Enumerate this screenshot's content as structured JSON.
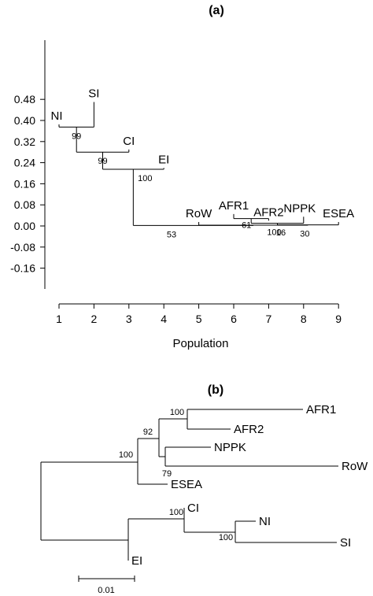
{
  "chart_data": [
    {
      "type": "dendrogram",
      "panel_label": "(a)",
      "xlabel": "Population",
      "x_ticks": [
        "1",
        "2",
        "3",
        "4",
        "5",
        "6",
        "7",
        "8",
        "9"
      ],
      "y_ticks": [
        "0.48",
        "0.40",
        "0.32",
        "0.24",
        "0.16",
        "0.08",
        "0.00",
        "-0.08",
        "-0.16"
      ],
      "ylim": [
        -0.2,
        0.52
      ],
      "leaves": [
        {
          "name": "NI",
          "x": 1,
          "y": 0.385
        },
        {
          "name": "SI",
          "x": 2,
          "y": 0.47
        },
        {
          "name": "CI",
          "x": 3,
          "y": 0.29
        },
        {
          "name": "EI",
          "x": 4,
          "y": 0.22
        },
        {
          "name": "RoW",
          "x": 5,
          "y": 0.015
        },
        {
          "name": "AFR1",
          "x": 6,
          "y": 0.045
        },
        {
          "name": "AFR2",
          "x": 7,
          "y": 0.02
        },
        {
          "name": "NPPK",
          "x": 8,
          "y": 0.035
        },
        {
          "name": "ESEA",
          "x": 9,
          "y": 0.015
        }
      ],
      "merges": [
        {
          "id": "NI_SI",
          "children": [
            "NI",
            "SI"
          ],
          "height": 0.375,
          "support": "99"
        },
        {
          "id": "CI_grp",
          "children": [
            "NI_SI",
            "CI"
          ],
          "height": 0.28,
          "support": "99"
        },
        {
          "id": "EI_grp",
          "children": [
            "CI_grp",
            "EI"
          ],
          "height": 0.215,
          "support": "100"
        },
        {
          "id": "AFR",
          "children": [
            "AFR1",
            "AFR2"
          ],
          "height": 0.028,
          "support": "61"
        },
        {
          "id": "AFR_NPPK",
          "children": [
            "AFR",
            "NPPK"
          ],
          "height": 0.01,
          "support": "100"
        },
        {
          "id": "NPPK_ESEA",
          "children": [
            "AFR_NPPK",
            "ESEA"
          ],
          "height": 0.004,
          "support": "30"
        },
        {
          "id": "ESEA_grp",
          "children": [
            "NPPK_ESEA",
            "RoW"
          ],
          "height": 0.003,
          "support": "16"
        },
        {
          "id": "root",
          "children": [
            "EI_grp",
            "ESEA_grp"
          ],
          "height": 0.002,
          "support": "53"
        }
      ]
    },
    {
      "type": "phylogram",
      "panel_label": "(b)",
      "scale_bar_label": "0.01",
      "tips": [
        {
          "name": "AFR1"
        },
        {
          "name": "AFR2"
        },
        {
          "name": "NPPK"
        },
        {
          "name": "RoW"
        },
        {
          "name": "ESEA"
        },
        {
          "name": "CI"
        },
        {
          "name": "NI"
        },
        {
          "name": "SI"
        },
        {
          "name": "EI"
        }
      ],
      "bootstrap": [
        "100",
        "92",
        "79",
        "100",
        "100",
        "100"
      ]
    }
  ]
}
